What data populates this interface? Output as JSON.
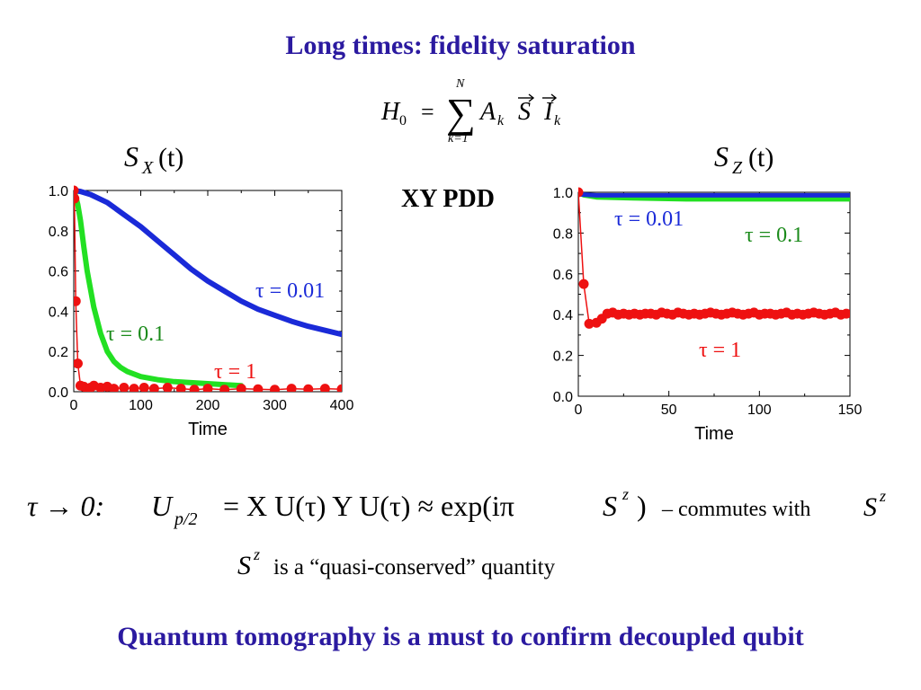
{
  "header": {
    "title": "Long times: fidelity saturation"
  },
  "hamiltonian": {
    "lhs": "H",
    "lhs_sub": "0",
    "eq": "=",
    "sum_top": "N",
    "sum_bottom": "k=1",
    "coef": "A",
    "coef_sub": "k",
    "spin": "S",
    "nuc": "I",
    "nuc_sub": "k"
  },
  "middle_label": "XY PDD",
  "formula": {
    "lhs": "τ → 0:",
    "u": "U",
    "u_sub": "p/2",
    "body": "= X U(τ) Y U(τ) ≈ exp(iπ",
    "sz": "S",
    "sz_sup": "z",
    "close": ")",
    "commutes": "– commutes with",
    "s2": "S",
    "s2_sup": "z"
  },
  "statement": {
    "s": "S",
    "sup": "z",
    "text": "is a “quasi-conserved” quantity"
  },
  "footer": {
    "text": "Quantum tomography is a must to confirm decoupled qubit"
  },
  "colors": {
    "title": "#2b1aa0",
    "blue": "#1a2ad8",
    "green": "#22e022",
    "red": "#ee1111",
    "green_text": "#1a8a1a"
  },
  "chart_data": [
    {
      "type": "line",
      "title": "S_X(t)",
      "title_main": "S",
      "title_sub": "X",
      "title_arg": "(t)",
      "xlabel": "Time",
      "ylabel": "",
      "xlim": [
        0,
        400
      ],
      "ylim": [
        0,
        1
      ],
      "xticks": [
        "0",
        "100",
        "200",
        "300",
        "400"
      ],
      "yticks": [
        "0.0",
        "0.2",
        "0.4",
        "0.6",
        "0.8",
        "1.0"
      ],
      "series": [
        {
          "name": "τ = 0.01",
          "color": "#1a2ad8",
          "x": [
            0,
            10,
            25,
            50,
            75,
            100,
            125,
            150,
            175,
            200,
            225,
            250,
            275,
            300,
            325,
            350,
            375,
            400
          ],
          "y": [
            1.0,
            0.995,
            0.98,
            0.94,
            0.88,
            0.82,
            0.75,
            0.68,
            0.61,
            0.55,
            0.5,
            0.45,
            0.41,
            0.38,
            0.35,
            0.325,
            0.305,
            0.285
          ]
        },
        {
          "name": "τ = 0.1",
          "color": "#22e022",
          "x": [
            0,
            3,
            6,
            10,
            15,
            20,
            30,
            40,
            50,
            60,
            70,
            80,
            100,
            125,
            150,
            175,
            200,
            250
          ],
          "y": [
            1.0,
            0.97,
            0.93,
            0.85,
            0.72,
            0.6,
            0.42,
            0.29,
            0.2,
            0.15,
            0.12,
            0.1,
            0.075,
            0.06,
            0.05,
            0.045,
            0.04,
            0.03
          ]
        },
        {
          "name": "τ = 1",
          "color": "#ee1111",
          "x": [
            0,
            1,
            3,
            6,
            10,
            15,
            20,
            25,
            30,
            40,
            50,
            60,
            75,
            90,
            105,
            120,
            140,
            160,
            180,
            200,
            225,
            250,
            275,
            300,
            325,
            350,
            375,
            400
          ],
          "y": [
            1.0,
            0.96,
            0.45,
            0.14,
            0.03,
            0.025,
            0.015,
            0.02,
            0.03,
            0.02,
            0.025,
            0.015,
            0.02,
            0.015,
            0.02,
            0.015,
            0.02,
            0.015,
            0.01,
            0.015,
            0.01,
            0.015,
            0.012,
            0.01,
            0.015,
            0.012,
            0.015,
            0.012
          ]
        }
      ]
    },
    {
      "type": "line",
      "title": "S_Z(t)",
      "title_main": "S",
      "title_sub": "Z",
      "title_arg": "(t)",
      "xlabel": "Time",
      "ylabel": "",
      "xlim": [
        0,
        150
      ],
      "ylim": [
        0,
        1
      ],
      "xticks": [
        "0",
        "50",
        "100",
        "150"
      ],
      "yticks": [
        "0.0",
        "0.2",
        "0.4",
        "0.6",
        "0.8",
        "1.0"
      ],
      "series": [
        {
          "name": "τ = 0.01",
          "color": "#1a2ad8",
          "x": [
            0,
            10,
            50,
            100,
            150
          ],
          "y": [
            0.99,
            0.985,
            0.985,
            0.985,
            0.985
          ]
        },
        {
          "name": "τ = 0.1",
          "color": "#22e022",
          "x": [
            0,
            3,
            10,
            30,
            60,
            100,
            150
          ],
          "y": [
            1.0,
            0.985,
            0.975,
            0.97,
            0.965,
            0.965,
            0.965
          ]
        },
        {
          "name": "τ = 1",
          "color": "#ee1111",
          "x": [
            0,
            3,
            6,
            10,
            13,
            16,
            19,
            22,
            25,
            28,
            31,
            34,
            37,
            40,
            43,
            46,
            49,
            52,
            55,
            58,
            61,
            64,
            67,
            70,
            73,
            76,
            79,
            82,
            85,
            88,
            91,
            94,
            97,
            100,
            103,
            106,
            109,
            112,
            115,
            118,
            121,
            124,
            127,
            130,
            133,
            136,
            139,
            142,
            145,
            148
          ],
          "y": [
            1.0,
            0.55,
            0.355,
            0.36,
            0.38,
            0.405,
            0.41,
            0.4,
            0.405,
            0.4,
            0.405,
            0.4,
            0.405,
            0.405,
            0.4,
            0.41,
            0.405,
            0.4,
            0.41,
            0.405,
            0.4,
            0.405,
            0.4,
            0.405,
            0.41,
            0.405,
            0.4,
            0.405,
            0.41,
            0.405,
            0.4,
            0.405,
            0.41,
            0.4,
            0.405,
            0.405,
            0.4,
            0.405,
            0.41,
            0.4,
            0.405,
            0.4,
            0.405,
            0.41,
            0.405,
            0.4,
            0.405,
            0.41,
            0.4,
            0.405
          ]
        }
      ]
    }
  ]
}
